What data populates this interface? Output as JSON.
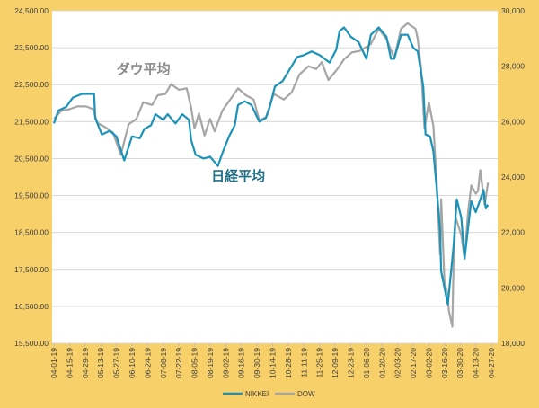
{
  "chart_data": {
    "type": "line",
    "title": "",
    "colors": {
      "plot_background": "#ffffff",
      "frame": "#f7d06a",
      "nikkei": "#1b93b8",
      "dow": "#a6a6a6",
      "grid": "#d9d9d9"
    },
    "y_left": {
      "ylim": [
        15500,
        24500
      ],
      "ticks": [
        15500,
        16500,
        17500,
        18500,
        19500,
        20500,
        21500,
        22500,
        23500,
        24500
      ],
      "tick_labels": [
        "15,500.00",
        "16,500.00",
        "17,500.00",
        "18,500.00",
        "19,500.00",
        "20,500.00",
        "21,500.00",
        "22,500.00",
        "23,500.00",
        "24,500.00"
      ]
    },
    "y_right": {
      "ylim": [
        18000,
        30000
      ],
      "ticks": [
        18000,
        20000,
        22000,
        24000,
        26000,
        28000,
        30000
      ],
      "tick_labels": [
        "18,000",
        "20,000",
        "22,000",
        "24,000",
        "26,000",
        "28,000",
        "30,000"
      ]
    },
    "x": {
      "start": "2019-04-01",
      "end": "2020-04-27",
      "tick_labels": [
        "04-01-19",
        "04-15-19",
        "04-29-19",
        "05-13-19",
        "05-27-19",
        "06-10-19",
        "06-24-19",
        "07-08-19",
        "07-22-19",
        "08-05-19",
        "08-19-19",
        "09-02-19",
        "09-16-19",
        "09-30-19",
        "10-14-19",
        "10-28-19",
        "11-11-19",
        "11-25-19",
        "12-09-19",
        "12-23-19",
        "01-06-20",
        "01-20-20",
        "02-03-20",
        "02-17-20",
        "03-02-20",
        "03-16-20",
        "03-30-20",
        "04-13-20",
        "04-27-20"
      ]
    },
    "series": [
      {
        "name": "NIKKEI",
        "axis": "left",
        "color": "#1b93b8",
        "points": [
          [
            "2019-04-01",
            21450
          ],
          [
            "2019-04-05",
            21800
          ],
          [
            "2019-04-12",
            21900
          ],
          [
            "2019-04-18",
            22150
          ],
          [
            "2019-04-26",
            22250
          ],
          [
            "2019-05-07",
            22250
          ],
          [
            "2019-05-08",
            21600
          ],
          [
            "2019-05-14",
            21150
          ],
          [
            "2019-05-21",
            21250
          ],
          [
            "2019-05-27",
            21100
          ],
          [
            "2019-06-03",
            20450
          ],
          [
            "2019-06-10",
            21100
          ],
          [
            "2019-06-17",
            21050
          ],
          [
            "2019-06-21",
            21300
          ],
          [
            "2019-06-27",
            21400
          ],
          [
            "2019-07-01",
            21700
          ],
          [
            "2019-07-08",
            21550
          ],
          [
            "2019-07-12",
            21700
          ],
          [
            "2019-07-19",
            21450
          ],
          [
            "2019-07-25",
            21700
          ],
          [
            "2019-07-31",
            21550
          ],
          [
            "2019-08-02",
            21000
          ],
          [
            "2019-08-06",
            20600
          ],
          [
            "2019-08-13",
            20500
          ],
          [
            "2019-08-19",
            20550
          ],
          [
            "2019-08-26",
            20300
          ],
          [
            "2019-08-30",
            20650
          ],
          [
            "2019-09-05",
            21100
          ],
          [
            "2019-09-10",
            21400
          ],
          [
            "2019-09-13",
            21950
          ],
          [
            "2019-09-19",
            22050
          ],
          [
            "2019-09-25",
            21950
          ],
          [
            "2019-10-02",
            21500
          ],
          [
            "2019-10-08",
            21600
          ],
          [
            "2019-10-11",
            21850
          ],
          [
            "2019-10-16",
            22450
          ],
          [
            "2019-10-23",
            22600
          ],
          [
            "2019-10-29",
            22900
          ],
          [
            "2019-11-05",
            23250
          ],
          [
            "2019-11-11",
            23300
          ],
          [
            "2019-11-18",
            23400
          ],
          [
            "2019-11-25",
            23300
          ],
          [
            "2019-12-04",
            23100
          ],
          [
            "2019-12-10",
            23450
          ],
          [
            "2019-12-13",
            23950
          ],
          [
            "2019-12-17",
            24050
          ],
          [
            "2019-12-23",
            23800
          ],
          [
            "2019-12-30",
            23650
          ],
          [
            "2020-01-06",
            23200
          ],
          [
            "2020-01-10",
            23850
          ],
          [
            "2020-01-17",
            24050
          ],
          [
            "2020-01-24",
            23800
          ],
          [
            "2020-01-28",
            23200
          ],
          [
            "2020-01-31",
            23200
          ],
          [
            "2020-02-06",
            23850
          ],
          [
            "2020-02-12",
            23850
          ],
          [
            "2020-02-17",
            23500
          ],
          [
            "2020-02-21",
            23400
          ],
          [
            "2020-02-26",
            22450
          ],
          [
            "2020-02-28",
            21150
          ],
          [
            "2020-03-03",
            21100
          ],
          [
            "2020-03-06",
            20700
          ],
          [
            "2020-03-09",
            19700
          ],
          [
            "2020-03-12",
            18550
          ],
          [
            "2020-03-13",
            17450
          ],
          [
            "2020-03-16",
            17000
          ],
          [
            "2020-03-19",
            16550
          ],
          [
            "2020-03-24",
            18100
          ],
          [
            "2020-03-27",
            19400
          ],
          [
            "2020-03-31",
            18900
          ],
          [
            "2020-04-03",
            17800
          ],
          [
            "2020-04-06",
            18600
          ],
          [
            "2020-04-09",
            19350
          ],
          [
            "2020-04-13",
            19050
          ],
          [
            "2020-04-16",
            19300
          ],
          [
            "2020-04-20",
            19650
          ],
          [
            "2020-04-22",
            19150
          ],
          [
            "2020-04-24",
            19250
          ]
        ]
      },
      {
        "name": "DOW",
        "axis": "right",
        "color": "#a6a6a6",
        "points": [
          [
            "2019-04-01",
            26100
          ],
          [
            "2019-04-08",
            26400
          ],
          [
            "2019-04-15",
            26450
          ],
          [
            "2019-04-22",
            26550
          ],
          [
            "2019-04-30",
            26550
          ],
          [
            "2019-05-06",
            26450
          ],
          [
            "2019-05-10",
            25950
          ],
          [
            "2019-05-17",
            25800
          ],
          [
            "2019-05-24",
            25600
          ],
          [
            "2019-05-31",
            24800
          ],
          [
            "2019-06-07",
            25900
          ],
          [
            "2019-06-14",
            26100
          ],
          [
            "2019-06-20",
            26700
          ],
          [
            "2019-06-28",
            26600
          ],
          [
            "2019-07-03",
            26950
          ],
          [
            "2019-07-10",
            27000
          ],
          [
            "2019-07-15",
            27350
          ],
          [
            "2019-07-22",
            27150
          ],
          [
            "2019-07-29",
            27200
          ],
          [
            "2019-08-02",
            26500
          ],
          [
            "2019-08-05",
            25750
          ],
          [
            "2019-08-09",
            26300
          ],
          [
            "2019-08-14",
            25500
          ],
          [
            "2019-08-19",
            26100
          ],
          [
            "2019-08-23",
            25650
          ],
          [
            "2019-08-30",
            26400
          ],
          [
            "2019-09-06",
            26800
          ],
          [
            "2019-09-13",
            27200
          ],
          [
            "2019-09-20",
            26950
          ],
          [
            "2019-09-27",
            26800
          ],
          [
            "2019-10-02",
            26050
          ],
          [
            "2019-10-08",
            26150
          ],
          [
            "2019-10-15",
            27000
          ],
          [
            "2019-10-24",
            26800
          ],
          [
            "2019-10-31",
            27050
          ],
          [
            "2019-11-07",
            27700
          ],
          [
            "2019-11-15",
            28000
          ],
          [
            "2019-11-22",
            27900
          ],
          [
            "2019-11-27",
            28150
          ],
          [
            "2019-12-03",
            27500
          ],
          [
            "2019-12-11",
            27900
          ],
          [
            "2019-12-17",
            28250
          ],
          [
            "2019-12-24",
            28500
          ],
          [
            "2019-12-31",
            28550
          ],
          [
            "2020-01-06",
            28700
          ],
          [
            "2020-01-10",
            28800
          ],
          [
            "2020-01-17",
            29350
          ],
          [
            "2020-01-24",
            28980
          ],
          [
            "2020-01-31",
            28300
          ],
          [
            "2020-02-06",
            29350
          ],
          [
            "2020-02-12",
            29550
          ],
          [
            "2020-02-19",
            29350
          ],
          [
            "2020-02-21",
            28990
          ],
          [
            "2020-02-24",
            27950
          ],
          [
            "2020-02-27",
            25750
          ],
          [
            "2020-03-02",
            26700
          ],
          [
            "2020-03-06",
            25850
          ],
          [
            "2020-03-09",
            23850
          ],
          [
            "2020-03-12",
            21200
          ],
          [
            "2020-03-13",
            23200
          ],
          [
            "2020-03-16",
            20200
          ],
          [
            "2020-03-18",
            19900
          ],
          [
            "2020-03-20",
            19150
          ],
          [
            "2020-03-23",
            18600
          ],
          [
            "2020-03-24",
            20700
          ],
          [
            "2020-03-26",
            22550
          ],
          [
            "2020-03-31",
            21900
          ],
          [
            "2020-04-03",
            21050
          ],
          [
            "2020-04-06",
            22700
          ],
          [
            "2020-04-09",
            23700
          ],
          [
            "2020-04-13",
            23400
          ],
          [
            "2020-04-15",
            23500
          ],
          [
            "2020-04-17",
            24250
          ],
          [
            "2020-04-21",
            23000
          ],
          [
            "2020-04-24",
            23800
          ]
        ]
      }
    ],
    "annotations": [
      {
        "text": "ダウ平均",
        "x": "2019-05-27",
        "y_left": 22800,
        "color": "#8c8c8c"
      },
      {
        "text": "日経平均",
        "x": "2019-08-20",
        "y_left": 19900,
        "color": "#1f6f86"
      }
    ],
    "legend": {
      "placement": "bottom-center",
      "entries": [
        "NIKKEI",
        "DOW"
      ]
    },
    "grid": {
      "horizontal": true,
      "vertical": false
    }
  }
}
